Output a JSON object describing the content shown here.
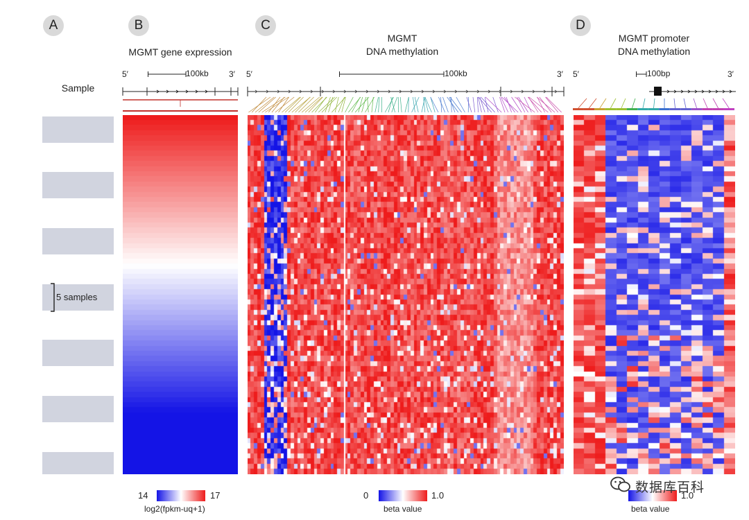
{
  "panels": {
    "a": {
      "letter": "A",
      "sample_label": "Sample",
      "bracket_label": "5 samples"
    },
    "b": {
      "letter": "B",
      "title": "MGMT gene expression",
      "end5": "5′",
      "end3": "3′",
      "scale": "100kb",
      "legend": {
        "min": "14",
        "max": "17",
        "label": "log2(fpkm-uq+1)"
      }
    },
    "c": {
      "letter": "C",
      "title_line1": "MGMT",
      "title_line2": "DNA methylation",
      "end5": "5′",
      "end3": "3′",
      "scale": "100kb",
      "legend": {
        "min": "0",
        "max": "1.0",
        "label": "beta value"
      }
    },
    "d": {
      "letter": "D",
      "title_line1": "MGMT promoter",
      "title_line2": "DNA methylation",
      "end5": "5′",
      "end3": "3′",
      "scale": "100bp",
      "legend": {
        "max": "1.0",
        "label": "beta value"
      }
    }
  },
  "watermark": "数据库百科",
  "colors": {
    "high": "#ee1c1c",
    "low": "#1414e6",
    "mid": "#ffffff",
    "gene_track": "#c0302a",
    "sample_bar": "#d1d4df"
  }
}
